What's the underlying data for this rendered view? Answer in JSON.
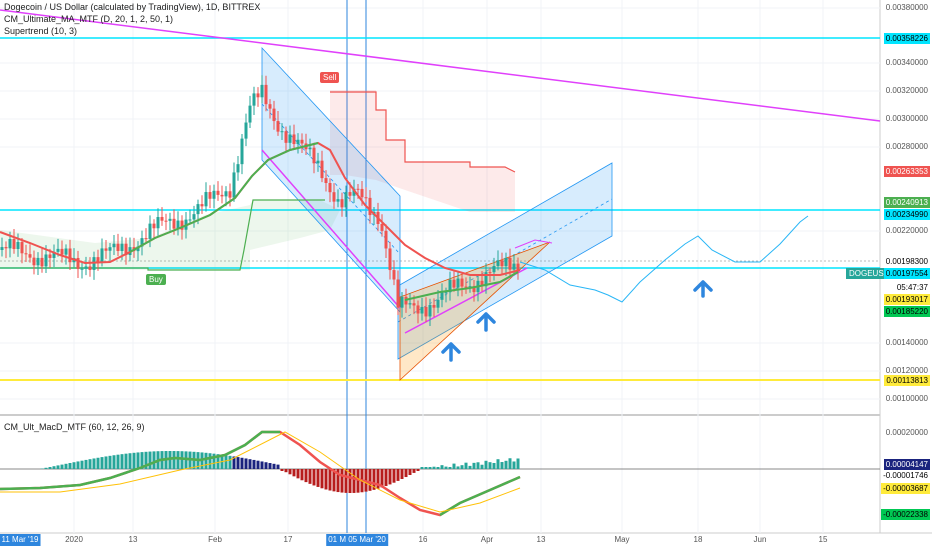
{
  "legend": {
    "symbol": "Dogecoin / US Dollar (calculated by TradingView), 1D, BITTREX",
    "indicator1": "CM_Ultimate_MA_MTF (D, 20, 1, 2, 50, 1)",
    "indicator2": "Supertrend (10, 3)",
    "macd": "CM_Ult_MacD_MTF (60, 12, 26, 9)"
  },
  "price_axis": [
    "0.00380000",
    "0.00340000",
    "0.00320000",
    "0.00300000",
    "0.00280000",
    "0.00220000",
    "0.00140000",
    "0.00120000",
    "0.00100000"
  ],
  "price_boxes": [
    {
      "label": "0.00358226",
      "bg": "#00e5ff",
      "fg": "#000000"
    },
    {
      "label": "0.00263353",
      "bg": "#ef5350",
      "fg": "#ffffff"
    },
    {
      "label": "0.00240913",
      "bg": "#4caf50",
      "fg": "#ffffff"
    },
    {
      "label": "0.00234990",
      "bg": "#00e5ff",
      "fg": "#000000"
    },
    {
      "label": "0.00198300",
      "bg": "#ffffff",
      "fg": "#000000"
    },
    {
      "label": "0.00197554",
      "bg": "#00e5ff",
      "fg": "#000000"
    },
    {
      "label": "05:47:37",
      "bg": "#ffffff",
      "fg": "#000000"
    },
    {
      "label": "0.00193017",
      "bg": "#ffeb3b",
      "fg": "#000000"
    },
    {
      "label": "0.00185220",
      "bg": "#00c853",
      "fg": "#000000"
    },
    {
      "label": "0.00113813",
      "bg": "#ffeb3b",
      "fg": "#000000"
    }
  ],
  "symbol_tag": "DOGEUSD",
  "macd_axis": [
    "0.00020000"
  ],
  "macd_boxes": [
    {
      "label": "0.00004147",
      "bg": "#1a237e",
      "fg": "#ffffff"
    },
    {
      "label": "-0.00001746",
      "bg": "#ffffff",
      "fg": "#000000"
    },
    {
      "label": "-0.00003687",
      "bg": "#ffeb3b",
      "fg": "#000000"
    },
    {
      "label": "-0.00022338",
      "bg": "#00c853",
      "fg": "#000000"
    }
  ],
  "time_axis": [
    {
      "label": "11 Mar '19",
      "hl": true
    },
    {
      "label": "2020",
      "hl": false
    },
    {
      "label": "13",
      "hl": false
    },
    {
      "label": "Feb",
      "hl": false
    },
    {
      "label": "17",
      "hl": false
    },
    {
      "label": "01 M 05 Mar '20",
      "hl": true
    },
    {
      "label": "16",
      "hl": false
    },
    {
      "label": "Apr",
      "hl": false
    },
    {
      "label": "13",
      "hl": false
    },
    {
      "label": "May",
      "hl": false
    },
    {
      "label": "18",
      "hl": false
    },
    {
      "label": "Jun",
      "hl": false
    },
    {
      "label": "15",
      "hl": false
    }
  ],
  "signals": {
    "sell": "Sell",
    "buy": "Buy"
  },
  "colors": {
    "up": "#26a69a",
    "down": "#ef5350",
    "ma": "#4caf50",
    "trend": "#e040fb",
    "cyan": "#00e5ff",
    "yellow": "#ffeb3b",
    "channel": "#2196f3"
  }
}
